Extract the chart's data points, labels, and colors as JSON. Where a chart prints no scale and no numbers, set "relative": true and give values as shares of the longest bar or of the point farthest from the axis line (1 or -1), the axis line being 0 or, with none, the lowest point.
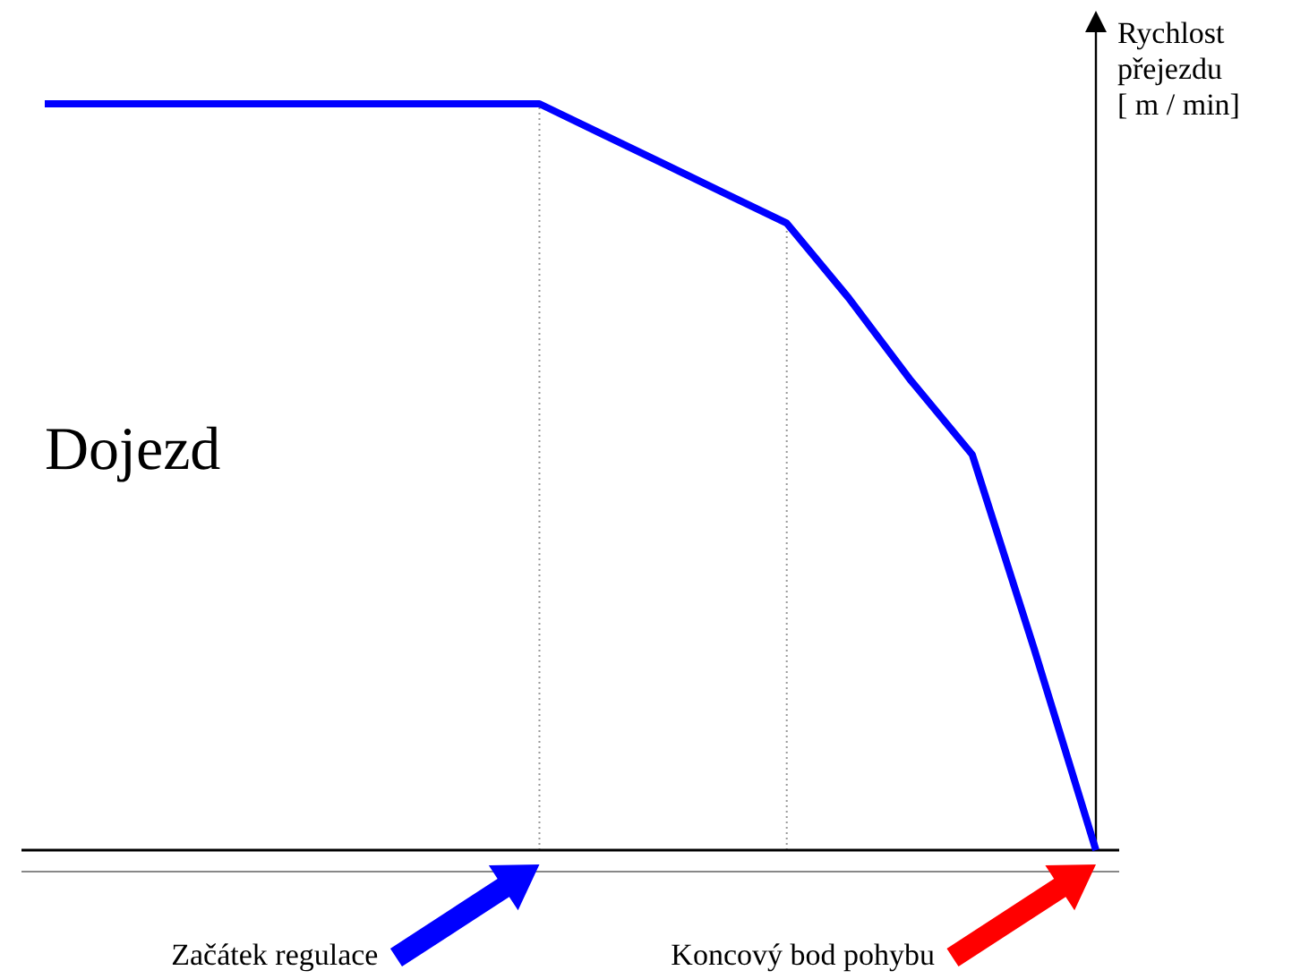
{
  "chart_data": {
    "type": "line",
    "relative": true,
    "ylabel": "Rychlost\npřejezdu\n[ m / min]",
    "categories": [
      null,
      null,
      null,
      null,
      null,
      null,
      null,
      null,
      null,
      null,
      null,
      null,
      null,
      null,
      null,
      null,
      null,
      null
    ],
    "marker": "none",
    "line_style": "solid",
    "series": [
      {
        "color": "#0000ff",
        "values": [
          1,
          1,
          1,
          1,
          1,
          1,
          1,
          1,
          1,
          0.96,
          0.92,
          0.88,
          0.84,
          0.74,
          0.63,
          0.53,
          0.27,
          0
        ]
      }
    ],
    "annotations": [
      "Dojezd",
      "Začátek regulace",
      "Koncový bod pohybu"
    ]
  }
}
